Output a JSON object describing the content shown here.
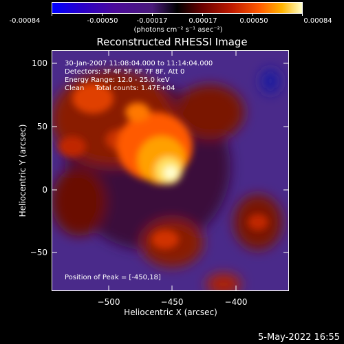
{
  "colorbar": {
    "ticks": [
      "-0.00084",
      "-0.00050",
      "-0.00017",
      "0.00017",
      "0.00050",
      "0.00084"
    ],
    "unit_label": "(photons cm⁻² s⁻¹ asec⁻²)"
  },
  "plot": {
    "title": "Reconstructed RHESSI Image",
    "xlabel": "Heliocentric X (arcsec)",
    "ylabel": "Heliocentric Y (arcsec)",
    "xticks": [
      "−500",
      "−450",
      "−400"
    ],
    "yticks": [
      "100",
      "50",
      "0",
      "−50"
    ],
    "annotations": {
      "time": "30-Jan-2007 11:08:04.000 to 11:14:04.000",
      "detectors": "Detectors: 3F 4F 5F 6F 7F 8F, Att 0",
      "energy": "Energy Range: 12.0 - 25.0 keV",
      "clean": "Clean     Total counts: 1.47E+04",
      "peak": "Position of Peak = [-450,18]"
    }
  },
  "timestamp": "5-May-2022 16:55"
}
